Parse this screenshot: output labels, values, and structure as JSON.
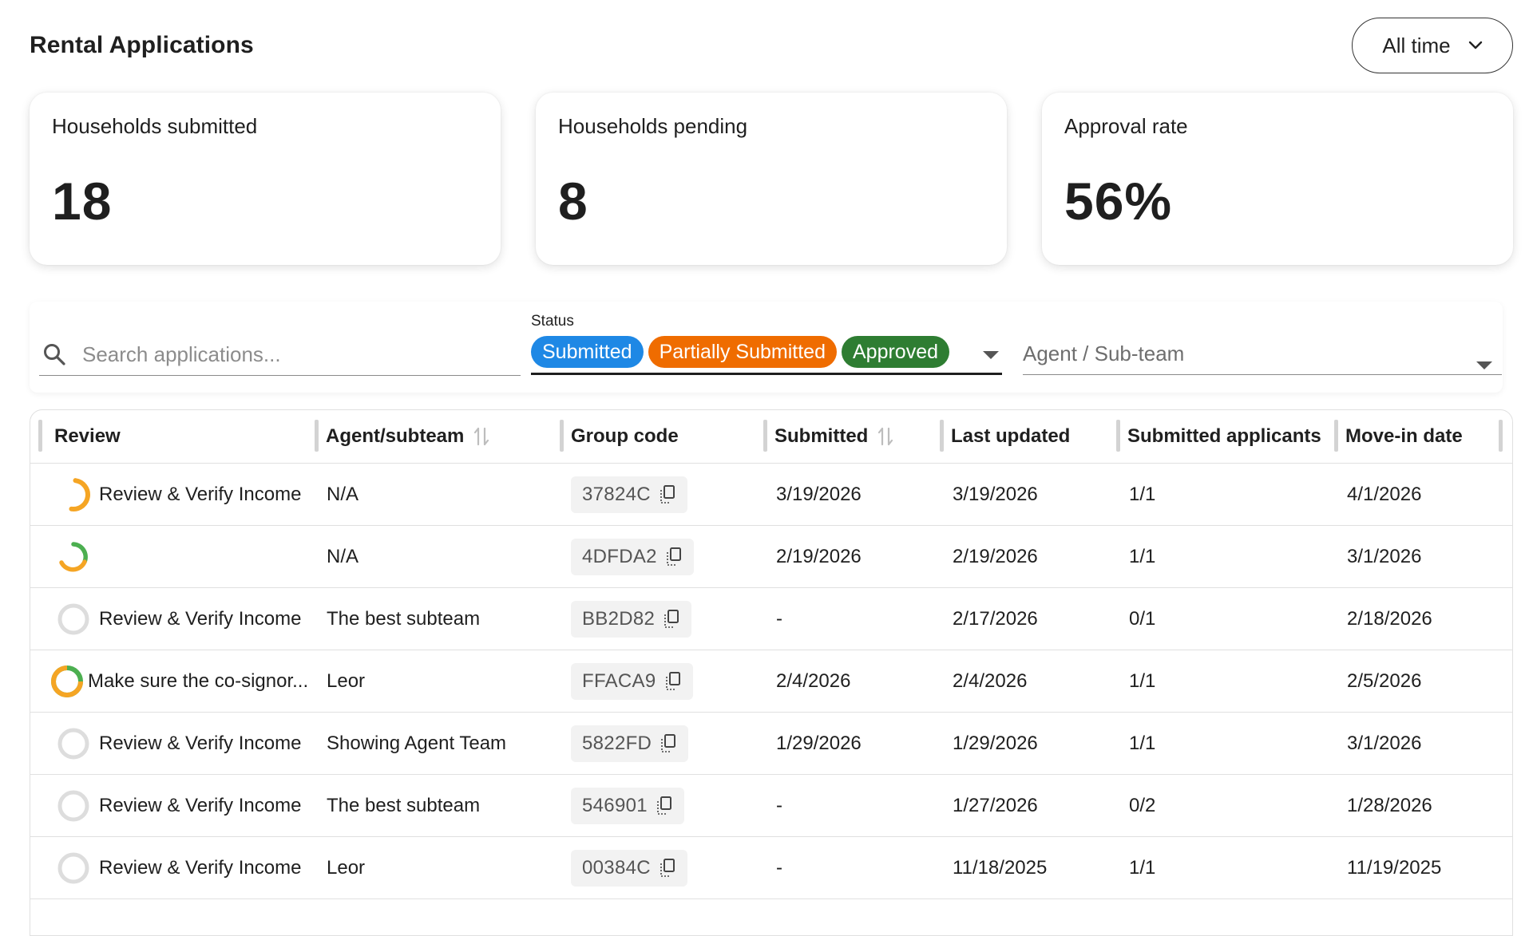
{
  "header": {
    "title": "Rental Applications",
    "time_filter": "All time"
  },
  "stats": [
    {
      "label": "Households submitted",
      "value": "18"
    },
    {
      "label": "Households pending",
      "value": "8"
    },
    {
      "label": "Approval rate",
      "value": "56%"
    }
  ],
  "filters": {
    "search_placeholder": "Search applications...",
    "status_label": "Status",
    "status_chips": [
      {
        "label": "Submitted",
        "color": "#1e88e5"
      },
      {
        "label": "Partially Submitted",
        "color": "#ef6c00"
      },
      {
        "label": "Approved",
        "color": "#2e7d32"
      }
    ],
    "agent_placeholder": "Agent / Sub-team"
  },
  "table": {
    "columns": [
      {
        "label": "Review",
        "sortable": false
      },
      {
        "label": "Agent/subteam",
        "sortable": true
      },
      {
        "label": "Group code",
        "sortable": false
      },
      {
        "label": "Submitted",
        "sortable": true
      },
      {
        "label": "Last updated",
        "sortable": false
      },
      {
        "label": "Submitted applicants",
        "sortable": false
      },
      {
        "label": "Move-in date",
        "sortable": false
      }
    ],
    "rows": [
      {
        "review": "Review & Verify Income",
        "progress_icon": "half-ring-orange",
        "agent": "N/A",
        "group_code": "37824C",
        "submitted": "3/19/2026",
        "last_updated": "3/19/2026",
        "applicants": "1/1",
        "move_in": "4/1/2026"
      },
      {
        "review": "",
        "progress_icon": "ring-orange-green",
        "agent": "N/A",
        "group_code": "4DFDA2",
        "submitted": "2/19/2026",
        "last_updated": "2/19/2026",
        "applicants": "1/1",
        "move_in": "3/1/2026"
      },
      {
        "review": "Review & Verify Income",
        "progress_icon": "empty-ring",
        "agent": "The best subteam",
        "group_code": "BB2D82",
        "submitted": "-",
        "last_updated": "2/17/2026",
        "applicants": "0/1",
        "move_in": "2/18/2026"
      },
      {
        "review": "Make sure the co-signor...",
        "progress_icon": "full-ring-orange-green",
        "agent": "Leor",
        "group_code": "FFACA9",
        "submitted": "2/4/2026",
        "last_updated": "2/4/2026",
        "applicants": "1/1",
        "move_in": "2/5/2026"
      },
      {
        "review": "Review & Verify Income",
        "progress_icon": "empty-ring",
        "agent": "Showing Agent Team",
        "group_code": "5822FD",
        "submitted": "1/29/2026",
        "last_updated": "1/29/2026",
        "applicants": "1/1",
        "move_in": "3/1/2026"
      },
      {
        "review": "Review & Verify Income",
        "progress_icon": "empty-ring",
        "agent": "The best subteam",
        "group_code": "546901",
        "submitted": "-",
        "last_updated": "1/27/2026",
        "applicants": "0/2",
        "move_in": "1/28/2026"
      },
      {
        "review": "Review & Verify Income",
        "progress_icon": "empty-ring",
        "agent": "Leor",
        "group_code": "00384C",
        "submitted": "-",
        "last_updated": "11/18/2025",
        "applicants": "1/1",
        "move_in": "11/19/2025"
      }
    ]
  },
  "colors": {
    "accent_orange": "#f5a524",
    "accent_green": "#4caf50",
    "ring_empty": "#dddddd"
  }
}
